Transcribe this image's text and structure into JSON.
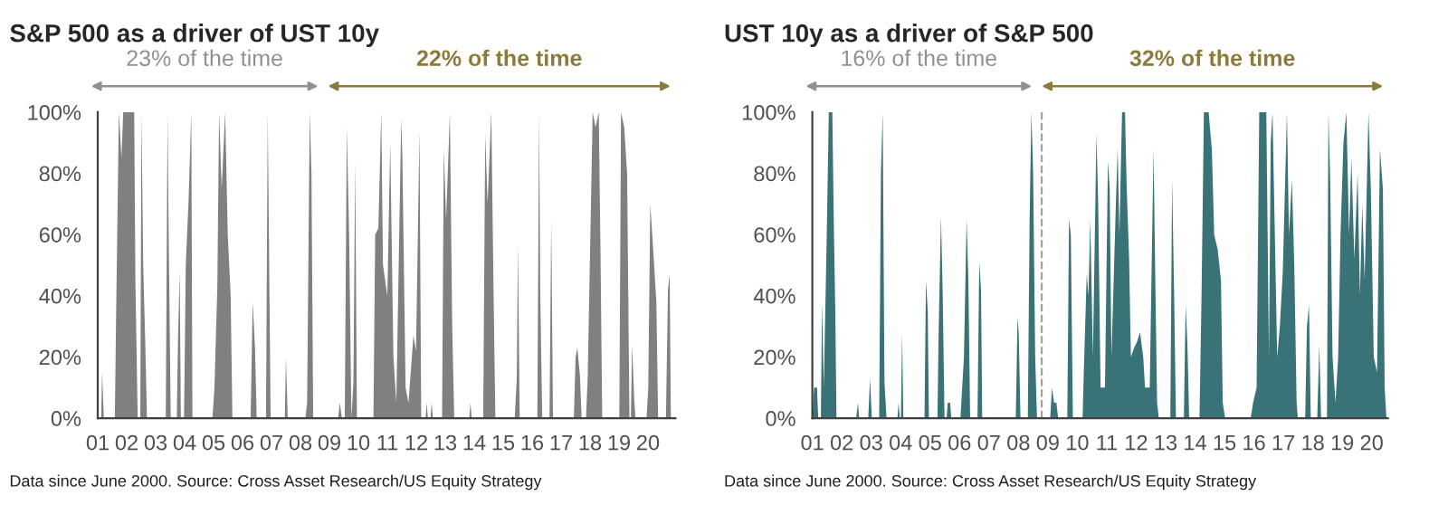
{
  "chart_data": [
    {
      "type": "area",
      "title": "S&P 500 as a driver of UST 10y",
      "annotations": [
        "23% of the time",
        "22% of the time",
        "Data since June 2000. Source: Cross Asset Research/US Equity Strategy"
      ],
      "series": [
        {
          "color": "#808080",
          "x": [
            2001.0,
            2001.12,
            2001.15,
            2001.21,
            2001.59,
            2001.63,
            2001.73,
            2001.82,
            2001.88,
            2002.26,
            2002.3,
            2002.38,
            2002.47,
            2002.51,
            2002.57,
            2002.64,
            2002.7,
            2003.35,
            2003.41,
            2003.45,
            2003.52,
            2003.73,
            2003.77,
            2003.83,
            2003.87,
            2003.98,
            2004.04,
            2004.14,
            2004.23,
            2004.27,
            2004.96,
            2005.03,
            2005.13,
            2005.19,
            2005.28,
            2005.4,
            2005.49,
            2005.59,
            2005.65,
            2006.28,
            2006.35,
            2006.43,
            2006.49,
            2006.81,
            2006.87,
            2006.91,
            2006.97,
            2007.46,
            2007.5,
            2007.56,
            2008.17,
            2008.23,
            2008.32,
            2008.38,
            2008.44,
            2009.3,
            2009.36,
            2009.43,
            2009.53,
            2009.6,
            2009.68,
            2009.76,
            2009.83,
            2009.89,
            2009.95,
            2010.52,
            2010.58,
            2010.69,
            2010.79,
            2010.85,
            2011.0,
            2011.1,
            2011.21,
            2011.31,
            2011.48,
            2011.52,
            2011.63,
            2011.73,
            2011.9,
            2011.99,
            2012.11,
            2012.17,
            2012.32,
            2012.36,
            2012.4,
            2012.49,
            2012.53,
            2012.57,
            2012.89,
            2012.95,
            2013.03,
            2013.16,
            2013.24,
            2013.31,
            2013.83,
            2013.87,
            2013.91,
            2014.31,
            2014.38,
            2014.46,
            2014.59,
            2014.67,
            2014.73,
            2015.4,
            2015.47,
            2015.51,
            2015.57,
            2016.18,
            2016.24,
            2016.28,
            2016.35,
            2016.6,
            2016.66,
            2016.72,
            2017.44,
            2017.5,
            2017.56,
            2017.65,
            2017.71,
            2017.86,
            2017.92,
            2018.09,
            2018.19,
            2018.3,
            2018.36,
            2018.42,
            2019.01,
            2019.07,
            2019.18,
            2019.28,
            2019.36,
            2019.41,
            2019.45,
            2019.53,
            2019.57,
            2019.95,
            2020.01,
            2020.08,
            2020.18,
            2020.29,
            2020.35,
            2020.62,
            2020.69,
            2020.75,
            2020.79
          ],
          "values": [
            0,
            0,
            15,
            0,
            0,
            30,
            100,
            85,
            100,
            100,
            45,
            0,
            0,
            100,
            50,
            25,
            0,
            0,
            100,
            60,
            0,
            0,
            25,
            48,
            0,
            0,
            50,
            72,
            100,
            0,
            0,
            10,
            43,
            100,
            75,
            100,
            60,
            40,
            0,
            0,
            38,
            23,
            0,
            0,
            100,
            60,
            0,
            0,
            20,
            0,
            0,
            5,
            100,
            80,
            0,
            0,
            5,
            0,
            0,
            95,
            60,
            0,
            12,
            84,
            0,
            0,
            60,
            62,
            100,
            50,
            40,
            90,
            20,
            5,
            98,
            85,
            10,
            5,
            27,
            22,
            94,
            0,
            0,
            5,
            0,
            0,
            5,
            0,
            0,
            88,
            65,
            100,
            30,
            0,
            0,
            5,
            0,
            0,
            93,
            70,
            100,
            40,
            0,
            0,
            13,
            57,
            0,
            0,
            100,
            40,
            0,
            0,
            65,
            0,
            0,
            20,
            23,
            14,
            0,
            0,
            14,
            100,
            95,
            100,
            55,
            0,
            0,
            100,
            95,
            80,
            0,
            0,
            24,
            5,
            0,
            0,
            10,
            70,
            55,
            38,
            0,
            0,
            42,
            47,
            0
          ]
        }
      ],
      "xlim": [
        2001,
        2020.95
      ],
      "xticks": [
        {
          "value": 2001,
          "label": "01"
        },
        {
          "value": 2002,
          "label": "02"
        },
        {
          "value": 2003,
          "label": "03"
        },
        {
          "value": 2004,
          "label": "04"
        },
        {
          "value": 2005,
          "label": "05"
        },
        {
          "value": 2006,
          "label": "06"
        },
        {
          "value": 2007,
          "label": "07"
        },
        {
          "value": 2008,
          "label": "08"
        },
        {
          "value": 2009,
          "label": "09"
        },
        {
          "value": 2010,
          "label": "10"
        },
        {
          "value": 2011,
          "label": "11"
        },
        {
          "value": 2012,
          "label": "12"
        },
        {
          "value": 2013,
          "label": "13"
        },
        {
          "value": 2014,
          "label": "14"
        },
        {
          "value": 2015,
          "label": "15"
        },
        {
          "value": 2016,
          "label": "16"
        },
        {
          "value": 2017,
          "label": "17"
        },
        {
          "value": 2018,
          "label": "18"
        },
        {
          "value": 2019,
          "label": "19"
        },
        {
          "value": 2020,
          "label": "20"
        }
      ],
      "ylim": [
        0,
        100
      ],
      "yticks": [
        {
          "value": 0,
          "label": "0%"
        },
        {
          "value": 20,
          "label": "20%"
        },
        {
          "value": 40,
          "label": "40%"
        },
        {
          "value": 60,
          "label": "60%"
        },
        {
          "value": 80,
          "label": "80%"
        },
        {
          "value": 100,
          "label": "100%"
        }
      ],
      "grid": false,
      "legend": false
    },
    {
      "type": "area",
      "title": "UST 10y as a driver of S&P 500",
      "annotations": [
        "16% of the time",
        "32% of the time",
        "Data since June 2000. Source: Cross Asset Research/US Equity Strategy"
      ],
      "ref_lines": [
        {
          "axis": "x",
          "value": 2008.79,
          "color": "#a0a0a0",
          "line_style": "dashed"
        }
      ],
      "series": [
        {
          "color": "#3a7377",
          "x": [
            2001.0,
            2001.06,
            2001.16,
            2001.2,
            2001.29,
            2001.33,
            2001.39,
            2001.49,
            2001.56,
            2001.68,
            2001.72,
            2001.78,
            2001.82,
            2002.49,
            2002.55,
            2002.59,
            2002.9,
            2002.96,
            2003.02,
            2003.27,
            2003.33,
            2003.39,
            2003.45,
            2003.52,
            2003.89,
            2003.93,
            2003.97,
            2004.01,
            2004.05,
            2004.09,
            2004.81,
            2004.86,
            2004.92,
            2004.96,
            2005.25,
            2005.29,
            2005.37,
            2005.43,
            2005.49,
            2005.56,
            2005.6,
            2005.68,
            2005.72,
            2006.03,
            2006.09,
            2006.15,
            2006.24,
            2006.3,
            2006.36,
            2006.61,
            2006.67,
            2006.73,
            2006.77,
            2007.91,
            2007.97,
            2008.01,
            2008.07,
            2008.32,
            2008.38,
            2008.44,
            2008.5,
            2008.57,
            2008.63,
            2009.08,
            2009.14,
            2009.21,
            2009.29,
            2009.35,
            2009.66,
            2009.72,
            2009.78,
            2009.85,
            2010.18,
            2010.22,
            2010.32,
            2010.38,
            2010.44,
            2010.53,
            2010.65,
            2010.71,
            2010.79,
            2010.94,
            2011.04,
            2011.1,
            2011.16,
            2011.31,
            2011.37,
            2011.43,
            2011.52,
            2011.62,
            2011.68,
            2011.76,
            2011.82,
            2011.93,
            2012.03,
            2012.13,
            2012.24,
            2012.3,
            2012.46,
            2012.59,
            2012.65,
            2012.71,
            2012.77,
            2013.16,
            2013.22,
            2013.29,
            2013.35,
            2013.62,
            2013.68,
            2013.74,
            2013.8,
            2014.15,
            2014.22,
            2014.3,
            2014.46,
            2014.57,
            2014.65,
            2014.77,
            2014.88,
            2014.94,
            2015.02,
            2015.89,
            2015.97,
            2016.09,
            2016.18,
            2016.42,
            2016.51,
            2016.57,
            2016.63,
            2016.71,
            2016.79,
            2016.88,
            2016.98,
            2017.12,
            2017.19,
            2017.29,
            2017.37,
            2017.45,
            2017.49,
            2017.74,
            2017.8,
            2017.87,
            2017.93,
            2018.15,
            2018.22,
            2018.28,
            2018.48,
            2018.53,
            2018.59,
            2018.67,
            2018.77,
            2018.86,
            2018.94,
            2019.04,
            2019.14,
            2019.23,
            2019.31,
            2019.41,
            2019.52,
            2019.6,
            2019.68,
            2019.76,
            2019.89,
            2019.97,
            2020.07,
            2020.18,
            2020.28,
            2020.38,
            2020.44,
            2020.5
          ],
          "values": [
            0,
            10,
            10,
            0,
            0,
            38,
            10,
            60,
            100,
            100,
            70,
            35,
            0,
            0,
            5,
            0,
            0,
            13,
            0,
            0,
            80,
            100,
            12,
            0,
            0,
            5,
            0,
            0,
            28,
            0,
            0,
            45,
            35,
            0,
            0,
            28,
            66,
            40,
            0,
            0,
            5,
            5,
            0,
            0,
            10,
            20,
            65,
            45,
            0,
            0,
            51,
            42,
            0,
            0,
            33,
            28,
            0,
            0,
            65,
            100,
            80,
            20,
            0,
            0,
            10,
            5,
            5,
            0,
            0,
            65,
            60,
            0,
            0,
            15,
            47,
            40,
            65,
            20,
            93,
            70,
            10,
            10,
            84,
            75,
            20,
            70,
            88,
            60,
            100,
            100,
            75,
            52,
            20,
            23,
            25,
            28,
            20,
            10,
            10,
            88,
            45,
            5,
            0,
            0,
            78,
            40,
            0,
            0,
            37,
            24,
            0,
            0,
            40,
            100,
            100,
            88,
            60,
            55,
            45,
            5,
            0,
            0,
            5,
            10,
            100,
            100,
            20,
            90,
            100,
            60,
            20,
            30,
            48,
            100,
            60,
            78,
            50,
            5,
            0,
            0,
            30,
            37,
            0,
            0,
            24,
            0,
            0,
            100,
            78,
            20,
            5,
            20,
            60,
            90,
            100,
            60,
            85,
            52,
            80,
            40,
            70,
            45,
            100,
            75,
            20,
            15,
            88,
            75,
            10,
            0
          ]
        }
      ],
      "xlim": [
        2001,
        2020.55
      ],
      "xticks": [
        {
          "value": 2001,
          "label": "01"
        },
        {
          "value": 2002,
          "label": "02"
        },
        {
          "value": 2003,
          "label": "03"
        },
        {
          "value": 2004,
          "label": "04"
        },
        {
          "value": 2005,
          "label": "05"
        },
        {
          "value": 2006,
          "label": "06"
        },
        {
          "value": 2007,
          "label": "07"
        },
        {
          "value": 2008,
          "label": "08"
        },
        {
          "value": 2009,
          "label": "09"
        },
        {
          "value": 2010,
          "label": "10"
        },
        {
          "value": 2011,
          "label": "11"
        },
        {
          "value": 2012,
          "label": "12"
        },
        {
          "value": 2013,
          "label": "13"
        },
        {
          "value": 2014,
          "label": "14"
        },
        {
          "value": 2015,
          "label": "15"
        },
        {
          "value": 2016,
          "label": "16"
        },
        {
          "value": 2017,
          "label": "17"
        },
        {
          "value": 2018,
          "label": "18"
        },
        {
          "value": 2019,
          "label": "19"
        },
        {
          "value": 2020,
          "label": "20"
        }
      ],
      "ylim": [
        0,
        100
      ],
      "yticks": [
        {
          "value": 0,
          "label": "0%"
        },
        {
          "value": 20,
          "label": "20%"
        },
        {
          "value": 40,
          "label": "40%"
        },
        {
          "value": 60,
          "label": "60%"
        },
        {
          "value": 80,
          "label": "80%"
        },
        {
          "value": 100,
          "label": "100%"
        }
      ],
      "grid": false,
      "legend": false
    }
  ]
}
